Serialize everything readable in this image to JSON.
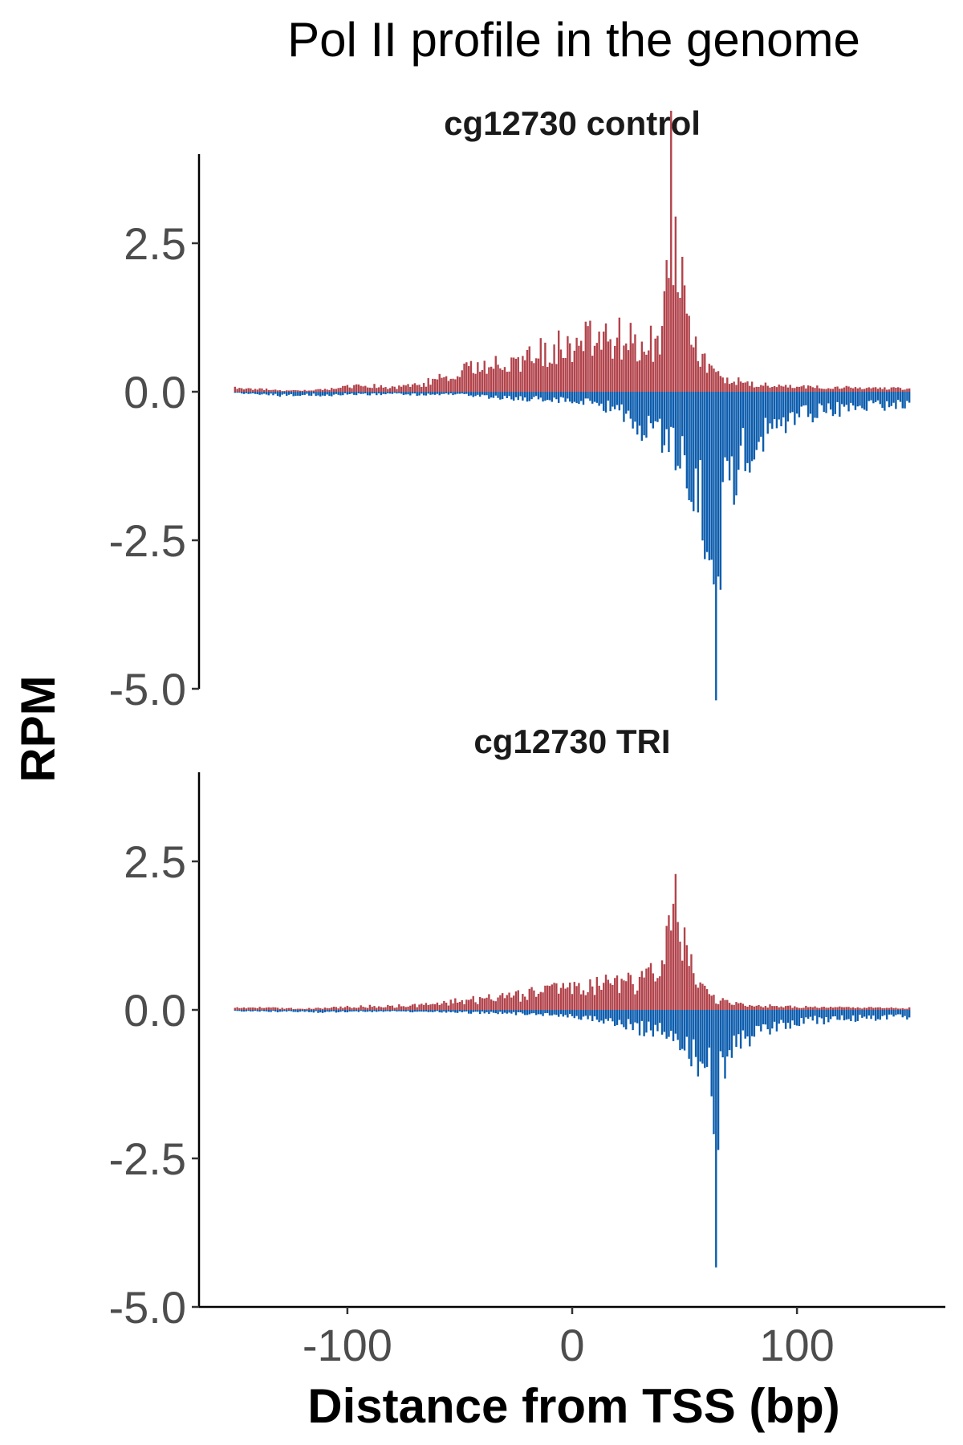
{
  "chart_data": {
    "type": "bar",
    "title": "Pol II profile in the genome",
    "xlabel": "Distance from TSS (bp)",
    "ylabel": "RPM",
    "xlim": [
      -166,
      166
    ],
    "ylim": [
      -5,
      4
    ],
    "x_ticks": [
      {
        "value": -100,
        "label": "-100"
      },
      {
        "value": 0,
        "label": "0"
      },
      {
        "value": 100,
        "label": "100"
      }
    ],
    "y_ticks": [
      {
        "value": 2.5,
        "label": "2.5"
      },
      {
        "value": 0,
        "label": "0.0"
      },
      {
        "value": -2.5,
        "label": "-2.5"
      },
      {
        "value": -5,
        "label": "-5.0"
      }
    ],
    "colors": {
      "positive": "#b2434b",
      "negative": "#0b5cad"
    },
    "grid": false,
    "x_range": [
      -150,
      150
    ],
    "panels": [
      {
        "strip": "cg12730 control",
        "positive_anchors": [
          [
            -150,
            0.06
          ],
          [
            -140,
            0.05
          ],
          [
            -130,
            0.02
          ],
          [
            -120,
            0.02
          ],
          [
            -110,
            0.04
          ],
          [
            -100,
            0.08
          ],
          [
            -90,
            0.1
          ],
          [
            -80,
            0.08
          ],
          [
            -70,
            0.1
          ],
          [
            -60,
            0.2
          ],
          [
            -50,
            0.35
          ],
          [
            -40,
            0.4
          ],
          [
            -30,
            0.45
          ],
          [
            -20,
            0.55
          ],
          [
            -10,
            0.75
          ],
          [
            0,
            0.7
          ],
          [
            10,
            0.9
          ],
          [
            20,
            0.9
          ],
          [
            30,
            0.75
          ],
          [
            38,
            0.85
          ],
          [
            42,
            1.8
          ],
          [
            44,
            3.5
          ],
          [
            46,
            2.9
          ],
          [
            48,
            2.6
          ],
          [
            50,
            2.0
          ],
          [
            52,
            1.5
          ],
          [
            55,
            0.9
          ],
          [
            58,
            0.5
          ],
          [
            62,
            0.35
          ],
          [
            66,
            0.25
          ],
          [
            70,
            0.2
          ],
          [
            80,
            0.12
          ],
          [
            90,
            0.1
          ],
          [
            100,
            0.08
          ],
          [
            120,
            0.07
          ],
          [
            150,
            0.05
          ]
        ],
        "negative_anchors": [
          [
            -150,
            -0.02
          ],
          [
            -140,
            -0.04
          ],
          [
            -130,
            -0.06
          ],
          [
            -120,
            -0.05
          ],
          [
            -110,
            -0.06
          ],
          [
            -100,
            -0.04
          ],
          [
            -90,
            -0.05
          ],
          [
            -80,
            -0.03
          ],
          [
            -70,
            -0.05
          ],
          [
            -60,
            -0.04
          ],
          [
            -50,
            -0.05
          ],
          [
            -40,
            -0.08
          ],
          [
            -30,
            -0.1
          ],
          [
            -20,
            -0.12
          ],
          [
            -10,
            -0.12
          ],
          [
            0,
            -0.15
          ],
          [
            10,
            -0.2
          ],
          [
            20,
            -0.3
          ],
          [
            30,
            -0.55
          ],
          [
            40,
            -0.8
          ],
          [
            48,
            -1.0
          ],
          [
            52,
            -1.4
          ],
          [
            56,
            -1.8
          ],
          [
            60,
            -2.2
          ],
          [
            62,
            -2.3
          ],
          [
            64,
            -4.8
          ],
          [
            66,
            -2.3
          ],
          [
            70,
            -1.6
          ],
          [
            74,
            -1.2
          ],
          [
            80,
            -0.9
          ],
          [
            90,
            -0.6
          ],
          [
            100,
            -0.4
          ],
          [
            120,
            -0.3
          ],
          [
            150,
            -0.2
          ]
        ]
      },
      {
        "strip": "cg12730 TRI",
        "positive_anchors": [
          [
            -150,
            0.05
          ],
          [
            -140,
            0.04
          ],
          [
            -130,
            0.03
          ],
          [
            -120,
            0.02
          ],
          [
            -110,
            0.03
          ],
          [
            -100,
            0.05
          ],
          [
            -90,
            0.06
          ],
          [
            -80,
            0.06
          ],
          [
            -70,
            0.08
          ],
          [
            -60,
            0.1
          ],
          [
            -50,
            0.15
          ],
          [
            -40,
            0.18
          ],
          [
            -30,
            0.2
          ],
          [
            -20,
            0.25
          ],
          [
            -10,
            0.35
          ],
          [
            0,
            0.35
          ],
          [
            10,
            0.4
          ],
          [
            20,
            0.45
          ],
          [
            30,
            0.45
          ],
          [
            38,
            0.6
          ],
          [
            42,
            1.0
          ],
          [
            44,
            2.1
          ],
          [
            46,
            1.6
          ],
          [
            48,
            1.3
          ],
          [
            50,
            1.0
          ],
          [
            52,
            0.8
          ],
          [
            55,
            0.55
          ],
          [
            58,
            0.35
          ],
          [
            62,
            0.2
          ],
          [
            66,
            0.15
          ],
          [
            70,
            0.12
          ],
          [
            80,
            0.08
          ],
          [
            90,
            0.06
          ],
          [
            100,
            0.05
          ],
          [
            120,
            0.04
          ],
          [
            150,
            0.03
          ]
        ],
        "negative_anchors": [
          [
            -150,
            -0.02
          ],
          [
            -140,
            -0.02
          ],
          [
            -130,
            -0.03
          ],
          [
            -120,
            -0.03
          ],
          [
            -110,
            -0.04
          ],
          [
            -100,
            -0.03
          ],
          [
            -90,
            -0.03
          ],
          [
            -80,
            -0.02
          ],
          [
            -70,
            -0.03
          ],
          [
            -60,
            -0.03
          ],
          [
            -50,
            -0.04
          ],
          [
            -40,
            -0.05
          ],
          [
            -30,
            -0.06
          ],
          [
            -20,
            -0.07
          ],
          [
            -10,
            -0.08
          ],
          [
            0,
            -0.1
          ],
          [
            10,
            -0.15
          ],
          [
            20,
            -0.2
          ],
          [
            30,
            -0.3
          ],
          [
            40,
            -0.35
          ],
          [
            48,
            -0.5
          ],
          [
            52,
            -0.7
          ],
          [
            56,
            -0.85
          ],
          [
            60,
            -1.0
          ],
          [
            62,
            -1.05
          ],
          [
            64,
            -3.1
          ],
          [
            66,
            -1.0
          ],
          [
            70,
            -0.75
          ],
          [
            74,
            -0.55
          ],
          [
            80,
            -0.4
          ],
          [
            90,
            -0.3
          ],
          [
            100,
            -0.2
          ],
          [
            120,
            -0.15
          ],
          [
            150,
            -0.12
          ]
        ]
      }
    ]
  }
}
